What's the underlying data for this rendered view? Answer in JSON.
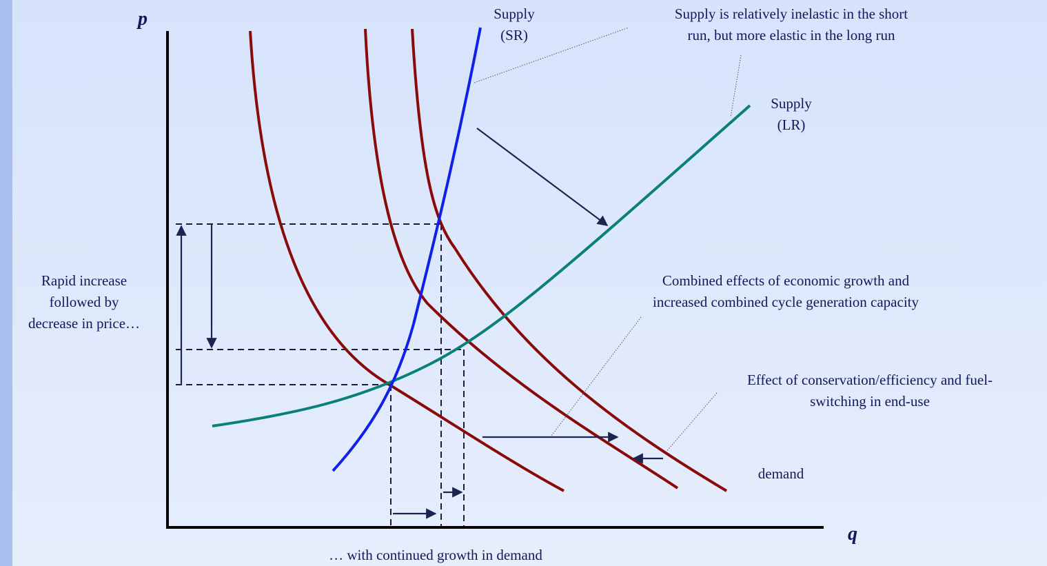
{
  "axes": {
    "y_label": "p",
    "x_label": "q"
  },
  "labels": {
    "supply_sr": [
      "Supply",
      "(SR)"
    ],
    "supply_note": [
      "Supply is relatively inelastic in the short",
      "run, but more elastic in the long run"
    ],
    "supply_lr": [
      "Supply",
      "(LR)"
    ],
    "price_note": [
      "Rapid increase",
      "followed by",
      "decrease in price…"
    ],
    "growth_note": [
      "Combined effects of economic growth and",
      "increased combined cycle generation capacity"
    ],
    "conservation_note": [
      "Effect of conservation/efficiency and fuel-",
      "switching  in end-use"
    ],
    "demand": "demand",
    "bottom_note": "… with continued growth in demand"
  }
}
